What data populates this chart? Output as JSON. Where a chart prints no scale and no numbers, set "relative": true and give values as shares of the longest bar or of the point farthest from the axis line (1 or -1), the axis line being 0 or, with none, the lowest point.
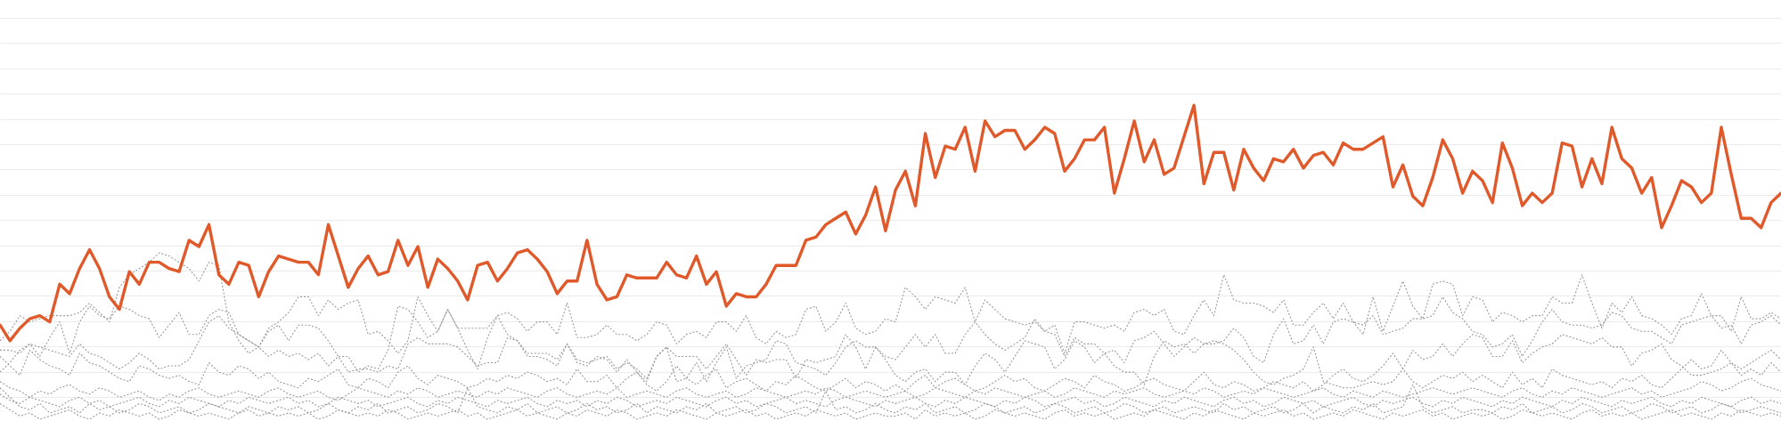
{
  "chart_data": {
    "type": "line",
    "relative": true,
    "grid": "y",
    "tick_labels": false,
    "categories": [
      null,
      null,
      null,
      null,
      null,
      null,
      null,
      null,
      null,
      null,
      null,
      null,
      null,
      null,
      null,
      null,
      null,
      null,
      null,
      null,
      null,
      null,
      null,
      null,
      null,
      null,
      null,
      null,
      null,
      null,
      null,
      null,
      null,
      null,
      null,
      null,
      null,
      null,
      null,
      null,
      null,
      null,
      null,
      null,
      null,
      null,
      null,
      null,
      null,
      null,
      null,
      null,
      null,
      null,
      null,
      null,
      null,
      null,
      null,
      null,
      null,
      null,
      null,
      null,
      null,
      null,
      null,
      null,
      null,
      null,
      null,
      null,
      null,
      null,
      null,
      null,
      null,
      null,
      null,
      null,
      null,
      null,
      null,
      null,
      null,
      null,
      null,
      null,
      null,
      null,
      null,
      null,
      null,
      null,
      null,
      null,
      null,
      null,
      null,
      null,
      null,
      null,
      null,
      null,
      null,
      null,
      null,
      null,
      null,
      null,
      null,
      null,
      null,
      null,
      null,
      null,
      null,
      null,
      null,
      null,
      null,
      null,
      null,
      null,
      null,
      null,
      null,
      null,
      null,
      null,
      null,
      null,
      null,
      null,
      null,
      null,
      null,
      null,
      null,
      null,
      null,
      null,
      null,
      null,
      null,
      null,
      null,
      null,
      null,
      null,
      null,
      null,
      null,
      null,
      null,
      null,
      null,
      null,
      null,
      null,
      null,
      null,
      null,
      null,
      null,
      null,
      null,
      null,
      null,
      null,
      null,
      null,
      null,
      null,
      null,
      null,
      null,
      null,
      null,
      null
    ],
    "series": [
      {
        "color": "#999999",
        "line_style": "dotted",
        "values": [
          0.25,
          0.28,
          0.33,
          0.31,
          0.32,
          0.33,
          0.33,
          0.33,
          0.34,
          0.37,
          0.34,
          0.31,
          0.42,
          0.46,
          0.48,
          0.5,
          0.53,
          0.52,
          0.5,
          0.48,
          0.44,
          0.5,
          0.49,
          0.31,
          0.25,
          0.21,
          0.23,
          0.29,
          0.31,
          0.34,
          0.39,
          0.39,
          0.33,
          0.38,
          0.35,
          0.37,
          0.38,
          0.27,
          0.28,
          0.25,
          0.21,
          0.25,
          0.39,
          0.33,
          0.28,
          0.35,
          0.29,
          0.29,
          0.29,
          0.29,
          0.33,
          0.34,
          0.32,
          0.28,
          0.31,
          0.31,
          0.27,
          0.37,
          0.26,
          0.26,
          0.27,
          0.3,
          0.27,
          0.27,
          0.25,
          0.27,
          0.31,
          0.3,
          0.24,
          0.27,
          0.28,
          0.26,
          0.31,
          0.31,
          0.28,
          0.33,
          0.26,
          0.24,
          0.28,
          0.26,
          0.27,
          0.35,
          0.36,
          0.28,
          0.31,
          0.37,
          0.29,
          0.27,
          0.28,
          0.32,
          0.31,
          0.42,
          0.39,
          0.35,
          0.39,
          0.38,
          0.37,
          0.42,
          0.31,
          0.38,
          0.35,
          0.32,
          0.31,
          0.3,
          0.31,
          0.28,
          0.3,
          0.21,
          0.31,
          0.31,
          0.3,
          0.29,
          0.3,
          0.28,
          0.34,
          0.35,
          0.33,
          0.35,
          0.28,
          0.27,
          0.33,
          0.38,
          0.33,
          0.46,
          0.38,
          0.37,
          0.37,
          0.36,
          0.34,
          0.38,
          0.3,
          0.3,
          0.34,
          0.37,
          0.32,
          0.37,
          0.31,
          0.27,
          0.39,
          0.28,
          0.36,
          0.44,
          0.36,
          0.32,
          0.43,
          0.44,
          0.43,
          0.33,
          0.39,
          0.38,
          0.31,
          0.34,
          0.33,
          0.31,
          0.33,
          0.33,
          0.39,
          0.37,
          0.37,
          0.46,
          0.37,
          0.29,
          0.37,
          0.34,
          0.39,
          0.33,
          0.32,
          0.3,
          0.27,
          0.32,
          0.33,
          0.4,
          0.33,
          0.33,
          0.28,
          0.39,
          0.32,
          0.32,
          0.34,
          0.32
        ]
      },
      {
        "color": "#999999",
        "line_style": "dotted",
        "values": [
          0.22,
          0.22,
          0.21,
          0.24,
          0.2,
          0.26,
          0.31,
          0.21,
          0.31,
          0.36,
          0.33,
          0.32,
          0.36,
          0.35,
          0.33,
          0.32,
          0.26,
          0.3,
          0.34,
          0.27,
          0.27,
          0.33,
          0.35,
          0.34,
          0.27,
          0.25,
          0.23,
          0.2,
          0.22,
          0.2,
          0.21,
          0.19,
          0.21,
          0.17,
          0.2,
          0.2,
          0.15,
          0.17,
          0.16,
          0.22,
          0.36,
          0.35,
          0.31,
          0.26,
          0.28,
          0.35,
          0.29,
          0.22,
          0.16,
          0.26,
          0.33,
          0.27,
          0.25,
          0.21,
          0.21,
          0.21,
          0.19,
          0.24,
          0.19,
          0.18,
          0.19,
          0.2,
          0.16,
          0.18,
          0.16,
          0.13,
          0.2,
          0.23,
          0.2,
          0.2,
          0.2,
          0.16,
          0.2,
          0.24,
          0.19,
          0.14,
          0.19,
          0.18,
          0.19,
          0.19,
          0.13,
          0.19,
          0.18,
          0.19,
          0.2,
          0.27,
          0.23,
          0.16,
          0.23,
          0.2,
          0.19,
          0.23,
          0.27,
          0.23,
          0.27,
          0.21,
          0.21,
          0.27,
          0.31,
          0.27,
          0.24,
          0.22,
          0.24,
          0.26,
          0.32,
          0.28,
          0.27,
          0.2,
          0.26,
          0.24,
          0.24,
          0.21,
          0.22,
          0.18,
          0.25,
          0.26,
          0.28,
          0.24,
          0.2,
          0.23,
          0.26,
          0.24,
          0.24,
          0.25,
          0.29,
          0.26,
          0.2,
          0.18,
          0.27,
          0.32,
          0.24,
          0.25,
          0.3,
          0.24,
          0.31,
          0.32,
          0.31,
          0.3,
          0.33,
          0.27,
          0.28,
          0.29,
          0.32,
          0.32,
          0.33,
          0.39,
          0.34,
          0.32,
          0.28,
          0.27,
          0.23,
          0.24,
          0.27,
          0.2,
          0.25,
          0.31,
          0.35,
          0.31,
          0.3,
          0.3,
          0.29,
          0.3,
          0.34,
          0.33,
          0.29,
          0.28,
          0.28,
          0.26,
          0.24,
          0.3,
          0.31,
          0.32,
          0.33,
          0.29,
          0.3,
          0.24,
          0.3,
          0.31,
          0.33,
          0.3
        ]
      },
      {
        "color": "#999999",
        "line_style": "dotted",
        "values": [
          0.15,
          0.18,
          0.22,
          0.24,
          0.23,
          0.22,
          0.21,
          0.2,
          0.24,
          0.21,
          0.2,
          0.18,
          0.16,
          0.18,
          0.21,
          0.19,
          0.16,
          0.17,
          0.17,
          0.19,
          0.25,
          0.31,
          0.33,
          0.29,
          0.27,
          0.25,
          0.23,
          0.28,
          0.3,
          0.25,
          0.3,
          0.3,
          0.29,
          0.25,
          0.2,
          0.15,
          0.16,
          0.16,
          0.15,
          0.17,
          0.16,
          0.24,
          0.26,
          0.24,
          0.24,
          0.24,
          0.23,
          0.2,
          0.17,
          0.18,
          0.18,
          0.26,
          0.25,
          0.2,
          0.2,
          0.19,
          0.17,
          0.24,
          0.18,
          0.17,
          0.2,
          0.19,
          0.15,
          0.19,
          0.15,
          0.12,
          0.2,
          0.23,
          0.12,
          0.13,
          0.18,
          0.12,
          0.18,
          0.23,
          0.13,
          0.17,
          0.18,
          0.19,
          0.25,
          0.24,
          0.18,
          0.17,
          0.16,
          0.14,
          0.18,
          0.23,
          0.25,
          0.23,
          0.23,
          0.19,
          0.14,
          0.12,
          0.15,
          0.16,
          0.12,
          0.15,
          0.15,
          0.11,
          0.17,
          0.21,
          0.19,
          0.15,
          0.2,
          0.25,
          0.24,
          0.23,
          0.16,
          0.19,
          0.25,
          0.23,
          0.18,
          0.21,
          0.17,
          0.15,
          0.15,
          0.11,
          0.2,
          0.25,
          0.23,
          0.24,
          0.21,
          0.24,
          0.25,
          0.24,
          0.22,
          0.19,
          0.15,
          0.12,
          0.11,
          0.13,
          0.14,
          0.16,
          0.23,
          0.12,
          0.11,
          0.1,
          0.1,
          0.11,
          0.12,
          0.11,
          0.12,
          0.16,
          0.22,
          0.19,
          0.2,
          0.24,
          0.2,
          0.24,
          0.27,
          0.26,
          0.2,
          0.2,
          0.25,
          0.18,
          0.21,
          0.23,
          0.24,
          0.27,
          0.26,
          0.25,
          0.24,
          0.26,
          0.23,
          0.23,
          0.17,
          0.21,
          0.22,
          0.24,
          0.19,
          0.17,
          0.14,
          0.14,
          0.15,
          0.16,
          0.18,
          0.14,
          0.16,
          0.14,
          0.18,
          0.15
        ]
      },
      {
        "color": "#999999",
        "line_style": "dotted",
        "values": [
          0.2,
          0.17,
          0.14,
          0.22,
          0.19,
          0.17,
          0.16,
          0.14,
          0.21,
          0.18,
          0.17,
          0.15,
          0.13,
          0.12,
          0.17,
          0.16,
          0.14,
          0.13,
          0.14,
          0.12,
          0.11,
          0.18,
          0.15,
          0.14,
          0.17,
          0.16,
          0.13,
          0.15,
          0.12,
          0.11,
          0.1,
          0.13,
          0.12,
          0.14,
          0.16,
          0.11,
          0.1,
          0.13,
          0.12,
          0.1,
          0.15,
          0.17,
          0.13,
          0.11,
          0.14,
          0.13,
          0.12,
          0.1,
          0.11,
          0.13,
          0.12,
          0.14,
          0.13,
          0.15,
          0.14,
          0.12,
          0.13,
          0.11,
          0.16,
          0.12,
          0.12,
          0.14,
          0.1,
          0.13,
          0.15,
          0.11,
          0.09,
          0.12,
          0.17,
          0.13,
          0.11,
          0.14,
          0.16,
          0.1,
          0.12,
          0.13,
          0.11,
          0.09,
          0.12,
          0.11,
          0.14,
          0.12,
          0.1,
          0.09,
          0.11,
          0.13,
          0.1,
          0.12,
          0.11,
          0.09,
          0.11,
          0.09,
          0.12,
          0.14,
          0.1,
          0.12,
          0.13,
          0.11,
          0.09,
          0.1,
          0.12,
          0.14,
          0.12,
          0.13,
          0.1,
          0.09,
          0.11,
          0.13,
          0.12,
          0.1,
          0.14,
          0.12,
          0.11,
          0.09,
          0.1,
          0.12,
          0.13,
          0.11,
          0.1,
          0.09,
          0.12,
          0.15,
          0.11,
          0.1,
          0.12,
          0.11,
          0.09,
          0.1,
          0.12,
          0.11,
          0.1,
          0.12,
          0.09,
          0.11,
          0.14,
          0.16,
          0.13,
          0.12,
          0.14,
          0.17,
          0.21,
          0.16,
          0.12,
          0.1,
          0.12,
          0.14,
          0.13,
          0.15,
          0.12,
          0.14,
          0.12,
          0.1,
          0.15,
          0.11,
          0.13,
          0.1,
          0.16,
          0.14,
          0.13,
          0.12,
          0.11,
          0.12,
          0.1,
          0.13,
          0.12,
          0.14,
          0.11,
          0.1,
          0.13,
          0.16,
          0.19,
          0.16,
          0.17,
          0.22,
          0.18,
          0.16,
          0.18,
          0.2,
          0.22,
          0.19
        ]
      },
      {
        "color": "#999999",
        "line_style": "dotted",
        "values": [
          0.12,
          0.1,
          0.09,
          0.07,
          0.09,
          0.08,
          0.1,
          0.11,
          0.09,
          0.08,
          0.1,
          0.09,
          0.07,
          0.08,
          0.09,
          0.07,
          0.06,
          0.08,
          0.07,
          0.09,
          0.1,
          0.08,
          0.07,
          0.08,
          0.09,
          0.08,
          0.07,
          0.09,
          0.1,
          0.08,
          0.07,
          0.08,
          0.09,
          0.07,
          0.06,
          0.08,
          0.1,
          0.09,
          0.08,
          0.07,
          0.09,
          0.08,
          0.1,
          0.09,
          0.07,
          0.08,
          0.09,
          0.08,
          0.07,
          0.09,
          0.08,
          0.1,
          0.09,
          0.08,
          0.07,
          0.09,
          0.1,
          0.08,
          0.07,
          0.08,
          0.09,
          0.08,
          0.1,
          0.07,
          0.08,
          0.09,
          0.08,
          0.07,
          0.09,
          0.1,
          0.08,
          0.07,
          0.08,
          0.09,
          0.07,
          0.08,
          0.1,
          0.09,
          0.08,
          0.07,
          0.08,
          0.09,
          0.08,
          0.1,
          0.09,
          0.07,
          0.08,
          0.09,
          0.08,
          0.07,
          0.08,
          0.09,
          0.07,
          0.08,
          0.1,
          0.09,
          0.08,
          0.07,
          0.09,
          0.08,
          0.1,
          0.09,
          0.08,
          0.07,
          0.08,
          0.09,
          0.07,
          0.08,
          0.1,
          0.09,
          0.08,
          0.07,
          0.09,
          0.08,
          0.09,
          0.1,
          0.08,
          0.07,
          0.08,
          0.09,
          0.08,
          0.1,
          0.09,
          0.07,
          0.08,
          0.09,
          0.08,
          0.1,
          0.09,
          0.08,
          0.07,
          0.08,
          0.09,
          0.1,
          0.08,
          0.07,
          0.09,
          0.08,
          0.07,
          0.09,
          0.08,
          0.07,
          0.08,
          0.09,
          0.1,
          0.09,
          0.08,
          0.09,
          0.1,
          0.09,
          0.08,
          0.07,
          0.09,
          0.1,
          0.08,
          0.07,
          0.09,
          0.08,
          0.1,
          0.09,
          0.08,
          0.07,
          0.08,
          0.09,
          0.1,
          0.08,
          0.09,
          0.07,
          0.08,
          0.09,
          0.1,
          0.12,
          0.11,
          0.09,
          0.1,
          0.12,
          0.13,
          0.11,
          0.1,
          0.09
        ]
      },
      {
        "color": "#999999",
        "line_style": "dotted",
        "values": [
          0.08,
          0.06,
          0.05,
          0.07,
          0.06,
          0.05,
          0.04,
          0.06,
          0.07,
          0.05,
          0.06,
          0.04,
          0.05,
          0.06,
          0.07,
          0.05,
          0.04,
          0.06,
          0.05,
          0.07,
          0.06,
          0.05,
          0.04,
          0.06,
          0.05,
          0.07,
          0.06,
          0.05,
          0.06,
          0.07,
          0.05,
          0.06,
          0.04,
          0.05,
          0.07,
          0.06,
          0.05,
          0.06,
          0.04,
          0.05,
          0.06,
          0.07,
          0.05,
          0.04,
          0.06,
          0.05,
          0.07,
          0.06,
          0.05,
          0.04,
          0.06,
          0.05,
          0.06,
          0.07,
          0.05,
          0.04,
          0.06,
          0.05,
          0.06,
          0.04,
          0.06,
          0.05,
          0.07,
          0.06,
          0.04,
          0.05,
          0.06,
          0.05,
          0.07,
          0.06,
          0.05,
          0.04,
          0.06,
          0.07,
          0.05,
          0.06,
          0.04,
          0.05,
          0.06,
          0.07,
          0.05,
          0.06,
          0.05,
          0.04,
          0.06,
          0.07,
          0.06,
          0.05,
          0.04,
          0.06,
          0.05,
          0.06,
          0.07,
          0.05,
          0.04,
          0.06,
          0.05,
          0.07,
          0.06,
          0.05,
          0.04,
          0.06,
          0.05,
          0.07,
          0.06,
          0.04,
          0.05,
          0.06,
          0.07,
          0.05,
          0.06,
          0.04,
          0.05,
          0.07,
          0.06,
          0.05,
          0.04,
          0.06,
          0.05,
          0.07,
          0.06,
          0.05,
          0.04,
          0.06,
          0.07,
          0.05,
          0.06,
          0.04,
          0.05,
          0.07,
          0.06,
          0.05,
          0.06,
          0.04,
          0.05,
          0.06,
          0.07,
          0.05,
          0.04,
          0.06,
          0.05,
          0.06,
          0.07,
          0.05,
          0.04,
          0.06,
          0.05,
          0.07,
          0.06,
          0.05,
          0.04,
          0.06,
          0.05,
          0.07,
          0.06,
          0.05,
          0.04,
          0.06,
          0.05,
          0.07,
          0.06,
          0.05,
          0.04,
          0.06,
          0.05,
          0.06,
          0.07,
          0.05,
          0.04,
          0.06,
          0.05,
          0.07,
          0.06,
          0.05,
          0.04,
          0.06,
          0.07,
          0.05,
          0.06,
          0.05
        ]
      },
      {
        "color": "#999999",
        "line_style": "dotted",
        "values": [
          0.1,
          0.07,
          0.04,
          0.03,
          0.05,
          0.02,
          0.03,
          0.04,
          0.02,
          0.05,
          0.03,
          0.04,
          0.02,
          0.03,
          0.05,
          0.04,
          0.02,
          0.03,
          0.04,
          0.02,
          0.03,
          0.05,
          0.04,
          0.03,
          0.02,
          0.04,
          0.03,
          0.02,
          0.04,
          0.03,
          0.04,
          0.02,
          0.03,
          0.05,
          0.03,
          0.02,
          0.04,
          0.03,
          0.05,
          0.02,
          0.03,
          0.04,
          0.02,
          0.03,
          0.05,
          0.04,
          0.02,
          0.1,
          0.04,
          0.03,
          0.02,
          0.04,
          0.03,
          0.05,
          0.02,
          0.03,
          0.04,
          0.02,
          0.03,
          0.05,
          0.03,
          0.04,
          0.02,
          0.03,
          0.05,
          0.02,
          0.04,
          0.03,
          0.02,
          0.04,
          0.03,
          0.05,
          0.02,
          0.03,
          0.04,
          0.02,
          0.03,
          0.05,
          0.04,
          0.02,
          0.03,
          0.04,
          0.02,
          0.09,
          0.03,
          0.04,
          0.02,
          0.03,
          0.05,
          0.03,
          0.02,
          0.04,
          0.03,
          0.05,
          0.02,
          0.03,
          0.04,
          0.02,
          0.03,
          0.05,
          0.04,
          0.02,
          0.03,
          0.04,
          0.02,
          0.03,
          0.05,
          0.04,
          0.02,
          0.03,
          0.04,
          0.02,
          0.03,
          0.05,
          0.04,
          0.02,
          0.03,
          0.04,
          0.02,
          0.03,
          0.04,
          0.03,
          0.02,
          0.05,
          0.03,
          0.04,
          0.02,
          0.03,
          0.04,
          0.02,
          0.03,
          0.05,
          0.02,
          0.04,
          0.03,
          0.02,
          0.04,
          0.03,
          0.05,
          0.02,
          0.03,
          0.04,
          0.11,
          0.04,
          0.02,
          0.03,
          0.04,
          0.02,
          0.03,
          0.03,
          0.02,
          0.04,
          0.03,
          0.05,
          0.02,
          0.03,
          0.04,
          0.02,
          0.03,
          0.05,
          0.04,
          0.02,
          0.03,
          0.04,
          0.02,
          0.03,
          0.05,
          0.04,
          0.02,
          0.03,
          0.04,
          0.02,
          0.03,
          0.05,
          0.04,
          0.02,
          0.03,
          0.04,
          0.03,
          0.02
        ]
      },
      {
        "color": "#999999",
        "line_style": "dotted",
        "values": [
          0.05,
          0.03,
          0.01,
          0.02,
          0.0,
          0.01,
          0.02,
          0.03,
          0.01,
          0.0,
          0.02,
          0.01,
          0.03,
          0.02,
          0.01,
          0.02,
          0.0,
          0.01,
          0.03,
          0.02,
          0.01,
          0.02,
          0.01,
          0.0,
          0.02,
          0.03,
          0.01,
          0.02,
          0.01,
          0.02,
          0.01,
          0.02,
          0.0,
          0.01,
          0.03,
          0.02,
          0.01,
          0.02,
          0.01,
          0.03,
          0.02,
          0.0,
          0.01,
          0.02,
          0.01,
          0.02,
          0.03,
          0.01,
          0.02,
          0.0,
          0.01,
          0.02,
          0.03,
          0.01,
          0.02,
          0.01,
          0.0,
          0.02,
          0.01,
          0.03,
          0.02,
          0.01,
          0.03,
          0.02,
          0.0,
          0.01,
          0.02,
          0.01,
          0.03,
          0.02,
          0.01,
          0.0,
          0.02,
          0.01,
          0.02,
          0.03,
          0.01,
          0.02,
          0.0,
          0.01,
          0.02,
          0.01,
          0.03,
          0.02,
          0.01,
          0.02,
          0.0,
          0.01,
          0.02,
          0.01,
          0.01,
          0.02,
          0.0,
          0.03,
          0.01,
          0.02,
          0.01,
          0.02,
          0.0,
          0.01,
          0.03,
          0.02,
          0.01,
          0.02,
          0.01,
          0.0,
          0.02,
          0.03,
          0.01,
          0.02,
          0.01,
          0.02,
          0.0,
          0.01,
          0.02,
          0.01,
          0.03,
          0.02,
          0.01,
          0.0,
          0.02,
          0.01,
          0.03,
          0.02,
          0.01,
          0.0,
          0.02,
          0.01,
          0.02,
          0.03,
          0.01,
          0.02,
          0.0,
          0.01,
          0.02,
          0.01,
          0.03,
          0.02,
          0.01,
          0.0,
          0.02,
          0.01,
          0.02,
          0.03,
          0.01,
          0.02,
          0.0,
          0.01,
          0.02,
          0.01,
          0.02,
          0.0,
          0.01,
          0.03,
          0.02,
          0.01,
          0.02,
          0.01,
          0.0,
          0.02,
          0.03,
          0.01,
          0.02,
          0.01,
          0.02,
          0.0,
          0.01,
          0.02,
          0.03,
          0.01,
          0.02,
          0.01,
          0.0,
          0.02,
          0.01,
          0.03,
          0.02,
          0.01,
          0.02,
          0.01
        ]
      },
      {
        "color": "#e0592a",
        "line_style": "solid",
        "values": [
          0.3,
          0.25,
          0.29,
          0.32,
          0.33,
          0.31,
          0.43,
          0.4,
          0.48,
          0.54,
          0.48,
          0.39,
          0.35,
          0.47,
          0.43,
          0.5,
          0.5,
          0.48,
          0.47,
          0.57,
          0.55,
          0.62,
          0.46,
          0.43,
          0.5,
          0.49,
          0.39,
          0.47,
          0.52,
          0.51,
          0.5,
          0.5,
          0.46,
          0.62,
          0.52,
          0.42,
          0.48,
          0.52,
          0.46,
          0.47,
          0.57,
          0.49,
          0.55,
          0.42,
          0.51,
          0.48,
          0.44,
          0.38,
          0.49,
          0.5,
          0.44,
          0.48,
          0.53,
          0.54,
          0.51,
          0.47,
          0.4,
          0.44,
          0.44,
          0.57,
          0.43,
          0.38,
          0.39,
          0.46,
          0.45,
          0.45,
          0.45,
          0.5,
          0.46,
          0.45,
          0.52,
          0.43,
          0.47,
          0.36,
          0.4,
          0.39,
          0.39,
          0.43,
          0.49,
          0.49,
          0.49,
          0.57,
          0.58,
          0.62,
          0.64,
          0.66,
          0.59,
          0.65,
          0.74,
          0.6,
          0.73,
          0.79,
          0.68,
          0.91,
          0.77,
          0.87,
          0.86,
          0.93,
          0.79,
          0.95,
          0.9,
          0.92,
          0.92,
          0.86,
          0.89,
          0.93,
          0.91,
          0.79,
          0.83,
          0.89,
          0.89,
          0.93,
          0.72,
          0.83,
          0.95,
          0.82,
          0.89,
          0.78,
          0.8,
          0.9,
          1.0,
          0.75,
          0.85,
          0.85,
          0.73,
          0.86,
          0.8,
          0.76,
          0.83,
          0.82,
          0.86,
          0.8,
          0.84,
          0.85,
          0.81,
          0.88,
          0.86,
          0.86,
          0.88,
          0.9,
          0.74,
          0.81,
          0.71,
          0.68,
          0.77,
          0.89,
          0.83,
          0.72,
          0.79,
          0.76,
          0.69,
          0.88,
          0.8,
          0.68,
          0.72,
          0.69,
          0.72,
          0.88,
          0.87,
          0.74,
          0.83,
          0.75,
          0.93,
          0.83,
          0.8,
          0.72,
          0.77,
          0.61,
          0.68,
          0.76,
          0.74,
          0.69,
          0.72,
          0.93,
          0.78,
          0.64,
          0.64,
          0.61,
          0.69,
          0.72
        ]
      }
    ]
  }
}
